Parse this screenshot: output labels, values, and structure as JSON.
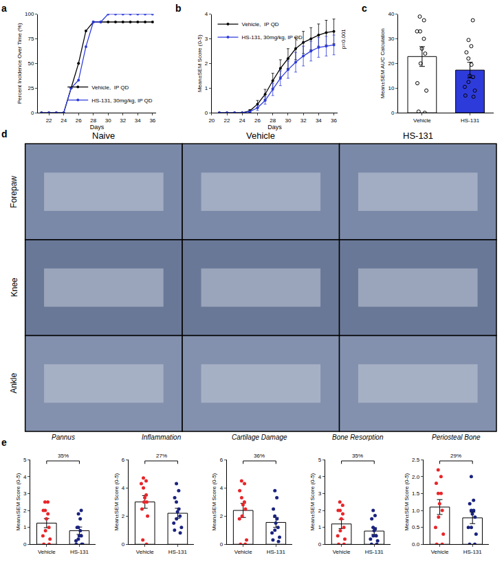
{
  "chart_data": [
    {
      "panel": "a",
      "type": "line",
      "x": [
        21,
        22,
        23,
        24,
        25,
        26,
        27,
        28,
        29,
        30,
        31,
        32,
        33,
        34,
        35,
        36
      ],
      "xlim": [
        20.5,
        36.5
      ],
      "xticks": [
        22,
        24,
        26,
        28,
        30,
        32,
        34,
        36
      ],
      "ylim": [
        0,
        100
      ],
      "yticks": [
        0,
        25,
        50,
        75,
        100
      ],
      "x_label": "Days",
      "y_label": "Percent Incidence Over Time (%)",
      "legend": "lower right",
      "series": [
        {
          "name": "Vehicle,  IP QD",
          "color": "#000000",
          "marker": "circle",
          "values": [
            0,
            0,
            0,
            0,
            25,
            50,
            83,
            92,
            92,
            92,
            92,
            92,
            92,
            92,
            92,
            92
          ]
        },
        {
          "name": "HS-131, 30mg/kg, IP QD",
          "color": "#2e3bdb",
          "marker": "circle",
          "values": [
            0,
            0,
            0,
            0,
            25,
            33,
            67,
            92,
            92,
            100,
            100,
            100,
            100,
            100,
            100,
            100
          ]
        }
      ]
    },
    {
      "panel": "b",
      "type": "line",
      "x": [
        21,
        22,
        23,
        24,
        25,
        26,
        27,
        28,
        29,
        30,
        31,
        32,
        33,
        34,
        35,
        36
      ],
      "xlim": [
        20,
        36.5
      ],
      "xticks": [
        20,
        22,
        24,
        26,
        28,
        30,
        32,
        34,
        36
      ],
      "ylim": [
        0,
        4
      ],
      "yticks": [
        0,
        1,
        2,
        3,
        4
      ],
      "x_label": "Days",
      "y_label": "Mean±SEM Score (0-5)",
      "legend": "upper left",
      "annotations": [
        "p=0.001"
      ],
      "series": [
        {
          "name": "Vehicle,  IP QD",
          "color": "#000000",
          "marker": "circle",
          "values": [
            0,
            0,
            0,
            0,
            0.08,
            0.35,
            0.75,
            1.3,
            1.8,
            2.2,
            2.6,
            2.85,
            3.0,
            3.15,
            3.25,
            3.3
          ],
          "error": [
            0,
            0,
            0,
            0,
            0.05,
            0.15,
            0.2,
            0.3,
            0.35,
            0.4,
            0.45,
            0.45,
            0.45,
            0.45,
            0.5,
            0.5
          ]
        },
        {
          "name": "HS-131, 30mg/kg, IP QD",
          "color": "#2e3bdb",
          "marker": "circle",
          "values": [
            0,
            0,
            0,
            0,
            0.05,
            0.2,
            0.5,
            0.95,
            1.4,
            1.75,
            2.05,
            2.3,
            2.5,
            2.65,
            2.7,
            2.75
          ],
          "error": [
            0,
            0,
            0,
            0,
            0.03,
            0.1,
            0.15,
            0.25,
            0.3,
            0.35,
            0.4,
            0.4,
            0.4,
            0.4,
            0.4,
            0.4
          ]
        }
      ]
    },
    {
      "panel": "c",
      "type": "bar",
      "categories": [
        "Vehicle",
        "HS-131"
      ],
      "values": [
        22.8,
        17.3
      ],
      "error": [
        4.0,
        3.2
      ],
      "points": [
        [
          39,
          37.5,
          33,
          33,
          30,
          26,
          24,
          20,
          12,
          9,
          0.5,
          0
        ],
        [
          37.5,
          29.5,
          27,
          24.5,
          22,
          19.5,
          15,
          14.5,
          12.5,
          10.5,
          9,
          7,
          6.5
        ]
      ],
      "colors": [
        "#ffffff",
        "#2e3bdb"
      ],
      "marker": "open circle",
      "ylim": [
        0,
        40
      ],
      "yticks": [
        0,
        10,
        20,
        30,
        40
      ],
      "y_label": "Mean±SEM AUC Calculation"
    },
    {
      "panel": "e",
      "type": "bar",
      "title": "Pannus",
      "annotations": [
        "35%"
      ],
      "categories": [
        "Vehicle",
        "HS-131"
      ],
      "values": [
        1.25,
        0.8
      ],
      "error": [
        0.27,
        0.22
      ],
      "points": [
        [
          2.5,
          2.5,
          2.0,
          2.0,
          1.8,
          1.5,
          1.0,
          0.8,
          0.5,
          0.3,
          0,
          0
        ],
        [
          2.0,
          1.8,
          1.5,
          1.0,
          1.0,
          0.8,
          0.5,
          0.5,
          0.3,
          0.2,
          0,
          0,
          0
        ]
      ],
      "colors": [
        "#e8262a",
        "#1a237e"
      ],
      "marker": "circle",
      "ylim": [
        0,
        5
      ],
      "yticks": [
        0,
        1,
        2,
        3,
        4,
        5
      ],
      "y_label": "Mean±SEM Score (0-5)"
    },
    {
      "panel": "e",
      "type": "bar",
      "title": "Inflammation",
      "annotations": [
        "27%"
      ],
      "categories": [
        "Vehicle",
        "HS-131"
      ],
      "values": [
        3.0,
        2.2
      ],
      "error": [
        0.45,
        0.35
      ],
      "points": [
        [
          4.7,
          4.5,
          4.3,
          4.0,
          3.5,
          3.3,
          3.0,
          3.0,
          2.5,
          2.0,
          0.3,
          0
        ],
        [
          4.3,
          3.8,
          3.3,
          3.0,
          2.5,
          2.3,
          2.0,
          1.8,
          1.5,
          1.2,
          1.0,
          0.8
        ]
      ],
      "colors": [
        "#e8262a",
        "#1a237e"
      ],
      "marker": "circle",
      "ylim": [
        0,
        6
      ],
      "yticks": [
        0,
        2,
        4,
        6
      ],
      "y_label": "Mean±SEM Score (0-5)"
    },
    {
      "panel": "e",
      "type": "bar",
      "title": "Cartilage Damage",
      "annotations": [
        "36%"
      ],
      "categories": [
        "Vehicle",
        "HS-131"
      ],
      "values": [
        2.4,
        1.55
      ],
      "error": [
        0.5,
        0.35
      ],
      "points": [
        [
          4.5,
          4.3,
          3.8,
          3.3,
          3.0,
          2.8,
          2.5,
          2.0,
          1.8,
          0.3,
          0,
          0
        ],
        [
          3.8,
          3.3,
          2.5,
          2.0,
          1.8,
          1.5,
          1.2,
          1.0,
          0.8,
          0.5,
          0.3,
          0.2
        ]
      ],
      "colors": [
        "#e8262a",
        "#1a237e"
      ],
      "marker": "circle",
      "ylim": [
        0,
        6
      ],
      "yticks": [
        0,
        2,
        4,
        6
      ],
      "y_label": "Mean±SEM Score (0-5)"
    },
    {
      "panel": "e",
      "type": "bar",
      "title": "Bone Resorption",
      "annotations": [
        "35%"
      ],
      "categories": [
        "Vehicle",
        "HS-131"
      ],
      "values": [
        1.2,
        0.78
      ],
      "error": [
        0.27,
        0.2
      ],
      "points": [
        [
          2.5,
          2.3,
          2.0,
          2.0,
          1.8,
          1.5,
          1.0,
          0.8,
          0.5,
          0.3,
          0,
          0
        ],
        [
          2.0,
          1.7,
          1.5,
          1.0,
          0.9,
          0.8,
          0.5,
          0.5,
          0.3,
          0.2,
          0,
          0
        ]
      ],
      "colors": [
        "#e8262a",
        "#1a237e"
      ],
      "marker": "circle",
      "ylim": [
        0,
        5
      ],
      "yticks": [
        0,
        1,
        2,
        3,
        4,
        5
      ],
      "y_label": "Mean±SEM Score (0-5)"
    },
    {
      "panel": "e",
      "type": "bar",
      "title": "Periosteal Bone",
      "annotations": [
        "29%"
      ],
      "categories": [
        "Vehicle",
        "HS-131"
      ],
      "values": [
        1.1,
        0.78
      ],
      "error": [
        0.22,
        0.17
      ],
      "points": [
        [
          2.2,
          2.0,
          1.8,
          1.5,
          1.5,
          1.2,
          1.0,
          0.8,
          0.5,
          0.3,
          0,
          0
        ],
        [
          2.0,
          1.3,
          1.2,
          1.0,
          1.0,
          0.9,
          0.8,
          0.5,
          0.5,
          0.3,
          0,
          0
        ]
      ],
      "colors": [
        "#e8262a",
        "#1a237e"
      ],
      "marker": "circle",
      "ylim": [
        0,
        2.5
      ],
      "yticks": [
        {
          "value": 0,
          "label": "0.0"
        },
        0.5,
        {
          "value": 1,
          "label": "1.0"
        },
        1.5,
        {
          "value": 2,
          "label": "2.0"
        },
        2.5
      ],
      "y_label": "Mean±SEM Score (0-5)"
    }
  ],
  "histology": {
    "panel": "d",
    "columns": [
      "Naive",
      "Vehicle",
      "HS-131"
    ],
    "rows": [
      "Forepaw",
      "Knee",
      "Ankle"
    ]
  }
}
